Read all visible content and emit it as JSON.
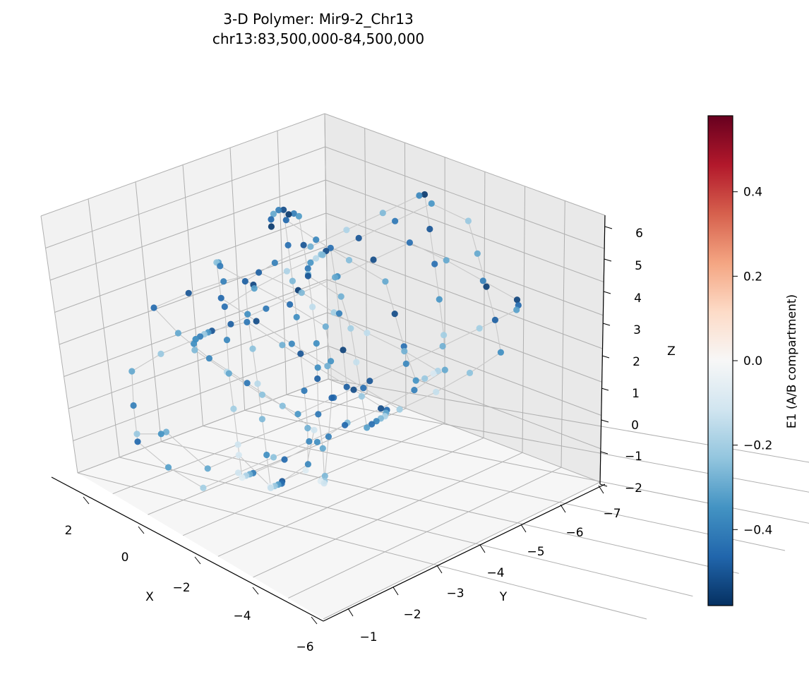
{
  "chart_data": {
    "type": "scatter",
    "projection": "3d",
    "title_line1": "3-D Polymer: Mir9-2_Chr13",
    "title_line2": "chr13:83,500,000-84,500,000",
    "xlabel": "X",
    "ylabel": "Y",
    "zlabel": "Z",
    "xlim": [
      -6,
      3
    ],
    "ylim": [
      -0.5,
      -7.2
    ],
    "zlim": [
      -2,
      6.2
    ],
    "xticks": [
      "2",
      "0",
      "−2",
      "−4",
      "−6"
    ],
    "yticks": [
      "−1",
      "−2",
      "−3",
      "−4",
      "−5",
      "−6",
      "−7"
    ],
    "zticks": [
      "−2",
      "−1",
      "0",
      "1",
      "2",
      "3",
      "4",
      "5",
      "6"
    ],
    "grid": true,
    "colormap": "RdBu_r",
    "colorbar": {
      "label": "E1 (A/B compartment)",
      "range": [
        -0.58,
        0.58
      ],
      "ticks": [
        "0.4",
        "0.2",
        "0.0",
        "−0.2",
        "−0.4"
      ],
      "tick_values": [
        0.4,
        0.2,
        0.0,
        -0.2,
        -0.4
      ]
    },
    "colors": {
      "pane_left": "#f2f2f2",
      "pane_right": "#e9e9e9",
      "pane_floor": "#f6f6f6",
      "grid": "#b0b0b0",
      "polymer_line": "#c8c8c8"
    },
    "series": [
      {
        "points": [
          [
            1.8,
            -1.2,
            -0.5,
            -0.22
          ],
          [
            1.2,
            -1.4,
            -0.3,
            -0.35
          ],
          [
            0.6,
            -1.1,
            0.2,
            -0.28
          ],
          [
            -0.2,
            -1.6,
            -0.8,
            -0.3
          ],
          [
            -0.9,
            -1.9,
            -0.2,
            -0.1
          ],
          [
            -1.6,
            -2.2,
            -1.0,
            -0.05
          ],
          [
            -2.3,
            -2.6,
            -0.4,
            -0.08
          ],
          [
            -1.9,
            -3.1,
            0.4,
            -0.12
          ],
          [
            -1.2,
            -2.8,
            1.0,
            -0.25
          ],
          [
            -0.5,
            -2.4,
            1.6,
            -0.42
          ],
          [
            0.3,
            -2.0,
            2.2,
            -0.38
          ],
          [
            1.0,
            -1.7,
            2.8,
            -0.3
          ],
          [
            1.6,
            -1.5,
            3.4,
            -0.45
          ],
          [
            0.9,
            -1.9,
            4.0,
            -0.5
          ],
          [
            0.2,
            -2.3,
            4.5,
            -0.4
          ],
          [
            -0.5,
            -2.7,
            4.9,
            -0.48
          ],
          [
            -1.2,
            -3.2,
            4.4,
            -0.55
          ],
          [
            -1.9,
            -3.6,
            3.8,
            -0.2
          ],
          [
            -2.5,
            -4.0,
            3.2,
            -0.15
          ],
          [
            -3.1,
            -4.5,
            2.6,
            -0.28
          ],
          [
            -3.7,
            -4.9,
            2.0,
            -0.18
          ],
          [
            -3.0,
            -5.3,
            1.4,
            -0.1
          ],
          [
            -2.3,
            -5.6,
            0.8,
            -0.22
          ],
          [
            -1.6,
            -5.9,
            0.3,
            -0.35
          ],
          [
            -0.8,
            -6.2,
            0.9,
            -0.44
          ],
          [
            -0.1,
            -6.5,
            1.5,
            -0.52
          ],
          [
            0.6,
            -6.8,
            2.1,
            -0.3
          ],
          [
            1.3,
            -6.4,
            2.7,
            -0.25
          ],
          [
            1.9,
            -6.0,
            3.3,
            -0.38
          ],
          [
            2.4,
            -5.6,
            3.9,
            -0.46
          ],
          [
            1.8,
            -5.2,
            4.5,
            -0.56
          ],
          [
            1.1,
            -4.8,
            5.0,
            -0.4
          ],
          [
            0.4,
            -4.4,
            5.4,
            -0.33
          ],
          [
            -0.3,
            -4.0,
            5.0,
            -0.5
          ],
          [
            -1.0,
            -3.6,
            4.6,
            -0.27
          ],
          [
            -1.7,
            -3.2,
            4.1,
            -0.15
          ],
          [
            -2.4,
            -2.8,
            3.5,
            -0.36
          ],
          [
            -3.0,
            -2.4,
            2.9,
            -0.48
          ],
          [
            -3.6,
            -2.0,
            2.3,
            -0.42
          ],
          [
            -4.2,
            -1.7,
            1.7,
            -0.3
          ],
          [
            -4.7,
            -1.4,
            1.1,
            -0.22
          ],
          [
            -4.1,
            -1.8,
            0.5,
            -0.12
          ],
          [
            -3.4,
            -2.2,
            0.0,
            -0.06
          ],
          [
            -2.7,
            -2.7,
            -0.6,
            -0.16
          ],
          [
            -2.0,
            -3.3,
            -1.1,
            -0.26
          ],
          [
            -1.3,
            -3.9,
            -0.5,
            -0.4
          ],
          [
            -0.6,
            -4.5,
            0.1,
            -0.47
          ],
          [
            0.1,
            -5.0,
            0.7,
            -0.35
          ],
          [
            0.8,
            -5.4,
            1.3,
            -0.29
          ],
          [
            1.5,
            -5.0,
            1.9,
            -0.45
          ],
          [
            2.1,
            -4.5,
            2.5,
            -0.53
          ],
          [
            2.6,
            -4.0,
            3.1,
            -0.41
          ],
          [
            2.0,
            -3.5,
            3.7,
            -0.32
          ],
          [
            1.4,
            -3.0,
            4.2,
            -0.24
          ],
          [
            0.7,
            -2.6,
            3.6,
            -0.46
          ],
          [
            0.0,
            -3.0,
            3.0,
            -0.52
          ],
          [
            -0.7,
            -3.4,
            2.4,
            -0.38
          ],
          [
            -1.4,
            -3.8,
            1.8,
            -0.28
          ],
          [
            -2.1,
            -4.2,
            1.2,
            -0.44
          ],
          [
            -2.8,
            -4.6,
            0.6,
            -0.2
          ],
          [
            -3.5,
            -5.0,
            1.2,
            -0.14
          ],
          [
            -4.1,
            -5.4,
            1.8,
            -0.24
          ],
          [
            -4.6,
            -5.8,
            2.4,
            -0.36
          ],
          [
            -4.0,
            -6.1,
            3.0,
            -0.48
          ],
          [
            -3.3,
            -6.4,
            3.6,
            -0.55
          ],
          [
            -2.6,
            -6.7,
            4.2,
            -0.3
          ],
          [
            -1.9,
            -7.0,
            4.8,
            -0.22
          ],
          [
            -1.2,
            -6.6,
            5.3,
            -0.34
          ],
          [
            -0.5,
            -6.2,
            4.7,
            -0.42
          ],
          [
            0.2,
            -5.8,
            4.1,
            -0.5
          ],
          [
            0.9,
            -5.4,
            3.5,
            -0.26
          ],
          [
            1.6,
            -5.0,
            2.9,
            -0.18
          ],
          [
            2.2,
            -4.6,
            2.3,
            -0.32
          ],
          [
            2.7,
            -4.2,
            1.7,
            -0.44
          ],
          [
            2.1,
            -3.8,
            1.1,
            -0.38
          ],
          [
            1.5,
            -3.4,
            0.5,
            -0.3
          ],
          [
            0.8,
            -3.0,
            -0.1,
            -0.2
          ],
          [
            0.1,
            -2.6,
            -0.7,
            -0.12
          ],
          [
            -0.6,
            -2.2,
            -1.2,
            -0.08
          ],
          [
            -1.3,
            -1.8,
            -0.6,
            -0.18
          ],
          [
            -2.0,
            -1.4,
            0.0,
            -0.28
          ],
          [
            -2.7,
            -1.0,
            0.6,
            -0.4
          ],
          [
            -3.4,
            -1.3,
            1.2,
            -0.46
          ],
          [
            -4.0,
            -1.7,
            1.8,
            -0.36
          ],
          [
            -4.5,
            -2.1,
            2.4,
            -0.26
          ],
          [
            -3.9,
            -2.5,
            3.0,
            -0.48
          ],
          [
            -3.2,
            -2.9,
            3.6,
            -0.54
          ],
          [
            -2.5,
            -3.3,
            4.2,
            -0.4
          ],
          [
            -1.8,
            -3.7,
            4.8,
            -0.3
          ],
          [
            -1.1,
            -4.1,
            5.2,
            -0.44
          ],
          [
            -0.4,
            -4.5,
            4.6,
            -0.52
          ],
          [
            0.3,
            -4.9,
            4.0,
            -0.24
          ],
          [
            1.0,
            -5.3,
            3.4,
            -0.16
          ],
          [
            1.7,
            -5.7,
            2.8,
            -0.34
          ],
          [
            2.3,
            -6.1,
            2.2,
            -0.42
          ],
          [
            2.8,
            -6.5,
            1.6,
            -0.5
          ],
          [
            2.2,
            -6.9,
            1.0,
            -0.28
          ],
          [
            1.5,
            -6.6,
            0.4,
            -0.2
          ],
          [
            0.8,
            -6.2,
            -0.2,
            -0.14
          ],
          [
            0.1,
            -5.8,
            -0.8,
            -0.22
          ],
          [
            -0.6,
            -5.4,
            -1.3,
            -0.32
          ],
          [
            -1.3,
            -5.0,
            -0.7,
            -0.44
          ],
          [
            -2.0,
            -4.6,
            -0.1,
            -0.38
          ],
          [
            -2.7,
            -4.2,
            0.5,
            -0.26
          ],
          [
            -3.4,
            -3.8,
            1.1,
            -0.18
          ],
          [
            -4.0,
            -3.4,
            1.7,
            -0.3
          ],
          [
            -4.6,
            -3.0,
            2.3,
            -0.46
          ],
          [
            -4.0,
            -2.6,
            2.9,
            -0.52
          ],
          [
            -3.3,
            -2.2,
            3.5,
            -0.36
          ],
          [
            -2.6,
            -1.8,
            4.1,
            -0.28
          ],
          [
            -1.9,
            -1.4,
            4.7,
            -0.42
          ],
          [
            -1.2,
            -1.0,
            4.3,
            -0.5
          ],
          [
            -0.5,
            -1.4,
            3.7,
            -0.34
          ],
          [
            0.2,
            -1.8,
            3.1,
            -0.22
          ],
          [
            0.9,
            -2.2,
            2.5,
            -0.4
          ],
          [
            1.6,
            -2.6,
            1.9,
            -0.48
          ],
          [
            2.2,
            -3.0,
            1.3,
            -0.36
          ],
          [
            2.7,
            -3.4,
            0.7,
            -0.26
          ],
          [
            2.1,
            -3.8,
            0.1,
            -0.16
          ],
          [
            1.4,
            -4.2,
            -0.5,
            -0.24
          ],
          [
            0.7,
            -4.6,
            -1.0,
            -0.34
          ],
          [
            0.0,
            -5.0,
            -0.4,
            -0.44
          ],
          [
            -0.7,
            -5.4,
            0.2,
            -0.5
          ],
          [
            -1.4,
            -5.8,
            0.8,
            -0.38
          ],
          [
            -2.1,
            -6.2,
            1.4,
            -0.28
          ],
          [
            -2.8,
            -6.6,
            2.0,
            -0.2
          ],
          [
            -3.5,
            -7.0,
            2.6,
            -0.32
          ],
          [
            -4.1,
            -6.6,
            3.2,
            -0.46
          ],
          [
            -4.6,
            -6.2,
            3.8,
            -0.54
          ],
          [
            -4.0,
            -5.8,
            4.4,
            -0.4
          ],
          [
            -3.3,
            -5.4,
            5.0,
            -0.3
          ],
          [
            -2.6,
            -5.0,
            5.5,
            -0.44
          ],
          [
            -1.9,
            -4.6,
            4.9,
            -0.52
          ],
          [
            -1.2,
            -4.2,
            4.3,
            -0.36
          ],
          [
            -0.5,
            -3.8,
            3.7,
            -0.26
          ],
          [
            0.2,
            -3.4,
            3.1,
            -0.42
          ],
          [
            0.9,
            -3.0,
            2.5,
            -0.48
          ],
          [
            1.6,
            -2.6,
            1.9,
            -0.34
          ],
          [
            2.3,
            -2.2,
            1.3,
            -0.22
          ],
          [
            2.8,
            -1.8,
            0.7,
            -0.3
          ],
          [
            2.2,
            -1.4,
            0.1,
            -0.4
          ],
          [
            1.5,
            -1.0,
            -0.5,
            -0.46
          ],
          [
            0.8,
            -1.3,
            -1.1,
            -0.32
          ],
          [
            0.1,
            -1.7,
            -1.6,
            -0.2
          ],
          [
            -0.6,
            -2.1,
            -1.0,
            -0.12
          ],
          [
            -1.3,
            -2.5,
            -0.4,
            -0.24
          ],
          [
            -2.0,
            -2.9,
            0.2,
            -0.38
          ],
          [
            -2.7,
            -3.3,
            0.8,
            -0.46
          ],
          [
            -3.4,
            -3.7,
            1.4,
            -0.52
          ],
          [
            -4.0,
            -4.1,
            2.0,
            -0.4
          ],
          [
            -4.5,
            -4.5,
            2.6,
            -0.3
          ],
          [
            -3.9,
            -4.9,
            3.2,
            -0.2
          ],
          [
            -3.2,
            -5.3,
            3.8,
            -0.34
          ],
          [
            -2.5,
            -5.7,
            4.4,
            -0.44
          ],
          [
            -1.8,
            -6.1,
            5.0,
            -0.5
          ],
          [
            -1.1,
            -6.5,
            5.6,
            -0.56
          ],
          [
            -0.4,
            -6.9,
            5.1,
            -0.38
          ],
          [
            0.3,
            -6.5,
            4.5,
            -0.26
          ],
          [
            1.0,
            -6.1,
            3.9,
            -0.18
          ],
          [
            1.7,
            -5.7,
            3.3,
            -0.28
          ],
          [
            2.4,
            -5.3,
            2.7,
            -0.4
          ],
          [
            2.9,
            -4.9,
            2.1,
            -0.48
          ],
          [
            2.3,
            -4.5,
            1.5,
            -0.36
          ],
          [
            1.6,
            -4.1,
            0.9,
            -0.24
          ],
          [
            0.9,
            -3.7,
            0.3,
            -0.16
          ],
          [
            0.2,
            -3.3,
            -0.3,
            -0.26
          ],
          [
            -0.5,
            -2.9,
            -0.9,
            -0.36
          ],
          [
            -1.2,
            -2.5,
            -1.4,
            -0.14
          ],
          [
            -1.9,
            -2.1,
            -0.8,
            -0.22
          ],
          [
            -2.6,
            -1.7,
            -0.2,
            -0.32
          ],
          [
            -3.3,
            -1.3,
            0.4,
            -0.44
          ],
          [
            -3.9,
            -0.9,
            1.0,
            -0.5
          ],
          [
            -4.4,
            -1.2,
            1.6,
            -0.38
          ],
          [
            -3.8,
            -1.6,
            2.2,
            -0.28
          ],
          [
            -3.1,
            -2.0,
            2.8,
            -0.42
          ],
          [
            -2.4,
            -2.4,
            3.4,
            -0.5
          ],
          [
            -1.7,
            -2.8,
            4.0,
            -0.36
          ],
          [
            -1.0,
            -3.2,
            4.6,
            -0.26
          ],
          [
            -0.3,
            -3.6,
            5.2,
            -0.44
          ],
          [
            0.4,
            -4.0,
            5.8,
            -0.52
          ],
          [
            1.1,
            -4.4,
            5.3,
            -0.4
          ],
          [
            1.8,
            -4.8,
            4.7,
            -0.3
          ],
          [
            2.4,
            -5.2,
            4.1,
            -0.46
          ],
          [
            2.9,
            -5.6,
            3.5,
            -0.56
          ]
        ]
      }
    ]
  }
}
